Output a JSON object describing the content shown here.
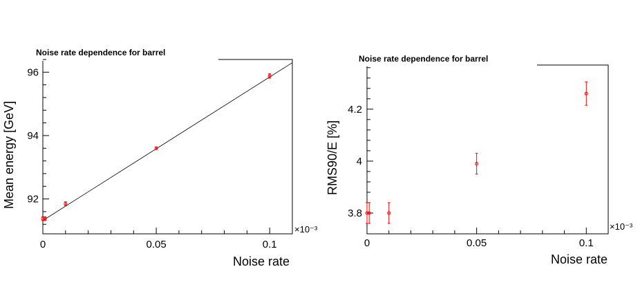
{
  "chart_data": [
    {
      "type": "scatter",
      "title": "Noise rate dependence for barrel",
      "xlabel": "Noise rate",
      "ylabel": "Mean energy [GeV]",
      "x_multiplier_label": "×10⁻³",
      "xlim": [
        0,
        0.11
      ],
      "ylim": [
        90.9,
        96.4
      ],
      "x_ticks": [
        0,
        0.05,
        0.1
      ],
      "x_tick_labels": [
        "0",
        "0.05",
        "0.1"
      ],
      "y_ticks": [
        92,
        94,
        96
      ],
      "y_tick_labels": [
        "92",
        "94",
        "96"
      ],
      "series": [
        {
          "color": "#ff0000",
          "points": [
            {
              "x": 0.0,
              "y": 91.38,
              "err": 0.06
            },
            {
              "x": 0.001,
              "y": 91.38,
              "err": 0.06
            },
            {
              "x": 0.01,
              "y": 91.85,
              "err": 0.06
            },
            {
              "x": 0.05,
              "y": 93.6,
              "err": 0.04
            },
            {
              "x": 0.1,
              "y": 95.88,
              "err": 0.07
            }
          ]
        }
      ],
      "fit_line": {
        "x0": 0.0,
        "y0": 91.32,
        "x1": 0.11,
        "y1": 96.3
      },
      "grid": false
    },
    {
      "type": "scatter",
      "title": "Noise rate dependence for barrel",
      "xlabel": "Noise rate",
      "ylabel": "RMS90/E [%]",
      "x_multiplier_label": "×10⁻³",
      "xlim": [
        0,
        0.11
      ],
      "ylim": [
        3.72,
        4.37
      ],
      "x_ticks": [
        0,
        0.05,
        0.1
      ],
      "x_tick_labels": [
        "0",
        "0.05",
        "0.1"
      ],
      "y_ticks": [
        3.8,
        4.0,
        4.2
      ],
      "y_tick_labels": [
        "3.8",
        "4",
        "4.2"
      ],
      "series": [
        {
          "color": "#ff0000",
          "points": [
            {
              "x": 0.0,
              "y": 3.8,
              "err": 0.04
            },
            {
              "x": 0.001,
              "y": 3.8,
              "err": 0.04
            },
            {
              "x": 0.01,
              "y": 3.8,
              "err": 0.04
            },
            {
              "x": 0.05,
              "y": 3.99,
              "err": 0.04
            },
            {
              "x": 0.1,
              "y": 4.26,
              "err": 0.045
            }
          ]
        }
      ],
      "grid": false
    }
  ]
}
